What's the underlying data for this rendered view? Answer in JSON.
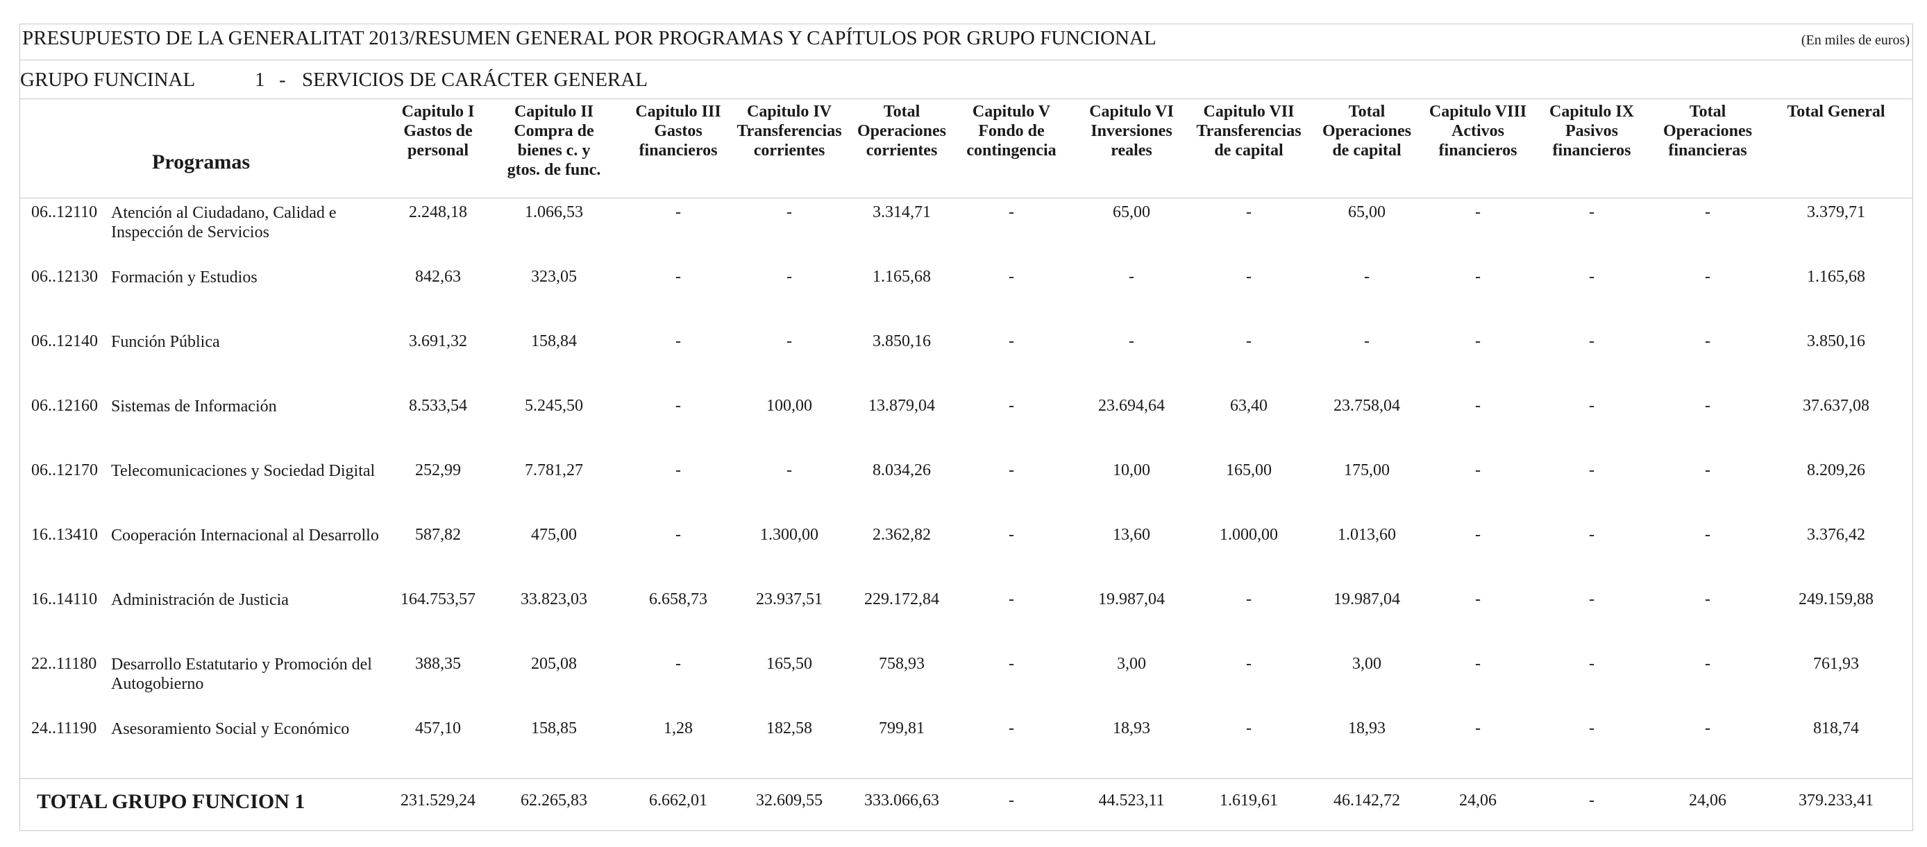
{
  "title": "PRESUPUESTO DE LA GENERALITAT 2013/RESUMEN GENERAL POR PROGRAMAS Y CAPÍTULOS POR GRUPO FUNCIONAL",
  "units": "(En miles de euros)",
  "group": {
    "label": "GRUPO FUNCINAL",
    "number": "1",
    "dash": "-",
    "name": "SERVICIOS DE CARÁCTER GENERAL"
  },
  "headers": {
    "programas": "Programas",
    "columns": [
      "Capitulo I\nGastos de\npersonal",
      "Capitulo II\nCompra de\nbienes c. y\ngtos. de func.",
      "Capitulo III\nGastos\nfinancieros",
      "Capitulo IV\nTransferencias\ncorrientes",
      "Total\nOperaciones\ncorrientes",
      "Capitulo V\nFondo de\ncontingencia",
      "Capitulo VI\nInversiones\nreales",
      "Capitulo VII\nTransferencias\nde capital",
      "Total\nOperaciones\nde capital",
      "Capitulo VIII\nActivos\nfinancieros",
      "Capitulo IX\nPasivos\nfinancieros",
      "Total\nOperaciones\nfinancieras",
      "Total General"
    ]
  },
  "rows": [
    {
      "code": "06..12110",
      "name": "Atención al Ciudadano, Calidad e Inspección de Servicios",
      "values": [
        "2.248,18",
        "1.066,53",
        "-",
        "-",
        "3.314,71",
        "-",
        "65,00",
        "-",
        "65,00",
        "-",
        "-",
        "-",
        "3.379,71"
      ]
    },
    {
      "code": "06..12130",
      "name": "Formación y Estudios",
      "values": [
        "842,63",
        "323,05",
        "-",
        "-",
        "1.165,68",
        "-",
        "-",
        "-",
        "-",
        "-",
        "-",
        "-",
        "1.165,68"
      ]
    },
    {
      "code": "06..12140",
      "name": "Función Pública",
      "values": [
        "3.691,32",
        "158,84",
        "-",
        "-",
        "3.850,16",
        "-",
        "-",
        "-",
        "-",
        "-",
        "-",
        "-",
        "3.850,16"
      ]
    },
    {
      "code": "06..12160",
      "name": "Sistemas de Información",
      "values": [
        "8.533,54",
        "5.245,50",
        "-",
        "100,00",
        "13.879,04",
        "-",
        "23.694,64",
        "63,40",
        "23.758,04",
        "-",
        "-",
        "-",
        "37.637,08"
      ]
    },
    {
      "code": "06..12170",
      "name": "Telecomunicaciones y Sociedad Digital",
      "values": [
        "252,99",
        "7.781,27",
        "-",
        "-",
        "8.034,26",
        "-",
        "10,00",
        "165,00",
        "175,00",
        "-",
        "-",
        "-",
        "8.209,26"
      ]
    },
    {
      "code": "16..13410",
      "name": "Cooperación Internacional al Desarrollo",
      "values": [
        "587,82",
        "475,00",
        "-",
        "1.300,00",
        "2.362,82",
        "-",
        "13,60",
        "1.000,00",
        "1.013,60",
        "-",
        "-",
        "-",
        "3.376,42"
      ]
    },
    {
      "code": "16..14110",
      "name": "Administración de Justicia",
      "values": [
        "164.753,57",
        "33.823,03",
        "6.658,73",
        "23.937,51",
        "229.172,84",
        "-",
        "19.987,04",
        "-",
        "19.987,04",
        "-",
        "-",
        "-",
        "249.159,88"
      ]
    },
    {
      "code": "22..11180",
      "name": "Desarrollo Estatutario y Promoción del Autogobierno",
      "values": [
        "388,35",
        "205,08",
        "-",
        "165,50",
        "758,93",
        "-",
        "3,00",
        "-",
        "3,00",
        "-",
        "-",
        "-",
        "761,93"
      ]
    },
    {
      "code": "24..11190",
      "name": "Asesoramiento Social y Económico",
      "values": [
        "457,10",
        "158,85",
        "1,28",
        "182,58",
        "799,81",
        "-",
        "18,93",
        "-",
        "18,93",
        "-",
        "-",
        "-",
        "818,74"
      ]
    }
  ],
  "total": {
    "label": "TOTAL GRUPO FUNCION  1",
    "values": [
      "231.529,24",
      "62.265,83",
      "6.662,01",
      "32.609,55",
      "333.066,63",
      "-",
      "44.523,11",
      "1.619,61",
      "46.142,72",
      "24,06",
      "-",
      "24,06",
      "379.233,41"
    ]
  }
}
